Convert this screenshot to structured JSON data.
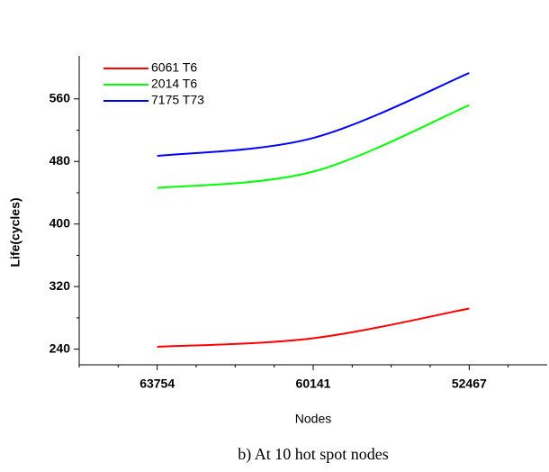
{
  "chart_data": {
    "type": "line",
    "caption": "b) At 10 hot spot nodes",
    "x_label": "Nodes",
    "y_label": "Life(cycles)",
    "categories": [
      "63754",
      "60141",
      "52467"
    ],
    "series": [
      {
        "name": "6061 T6",
        "color": "#ff0000",
        "values": [
          243,
          254,
          292
        ]
      },
      {
        "name": "2014 T6",
        "color": "#00ff00",
        "values": [
          446,
          467,
          552
        ]
      },
      {
        "name": "7175 T73",
        "color": "#0000ff",
        "values": [
          487,
          510,
          593
        ]
      }
    ],
    "ylim": [
      220,
      615
    ],
    "yticks": [
      240,
      320,
      400,
      480,
      560
    ],
    "legend": "upper-left"
  }
}
